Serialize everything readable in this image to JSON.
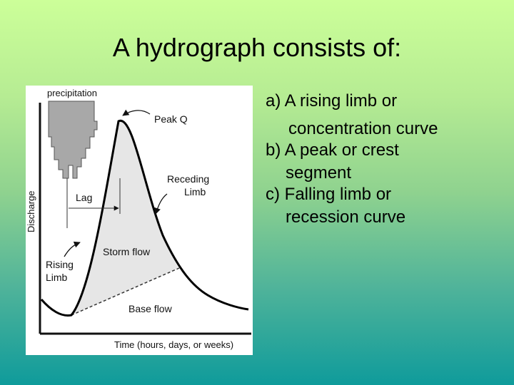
{
  "slide": {
    "title": "A hydrograph consists of:"
  },
  "diagram": {
    "labels": {
      "precipitation": "precipitation",
      "peak_q": "Peak Q",
      "receding_limb_1": "Receding",
      "receding_limb_2": "Limb",
      "lag": "Lag",
      "discharge": "Discharge",
      "storm_flow": "Storm flow",
      "rising_limb_1": "Rising",
      "rising_limb_2": "Limb",
      "base_flow": "Base flow",
      "time_axis": "Time (hours, days, or weeks)"
    }
  },
  "bullets": [
    {
      "line1": "a) A rising limb or",
      "line2": "concentration curve"
    },
    {
      "line1": "b) A peak or crest",
      "line2": "segment"
    },
    {
      "line1": "c) Falling limb or",
      "line2": "recession curve"
    }
  ]
}
